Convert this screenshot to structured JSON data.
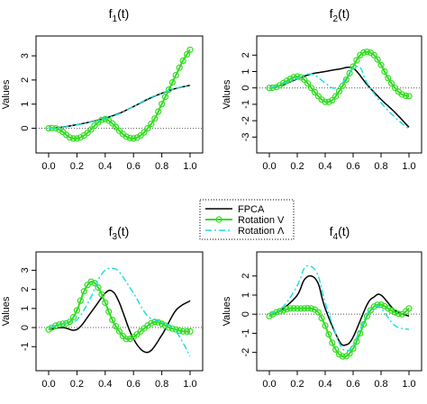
{
  "legend": {
    "entries": [
      {
        "label": "FPCA",
        "color": "#000000",
        "style": "solid"
      },
      {
        "label": "Rotation V",
        "color": "#33dd22",
        "style": "solid-circles"
      },
      {
        "label": "Rotation Λ",
        "color": "#22dddd",
        "style": "dashed"
      }
    ],
    "placement": "center"
  },
  "chart_data": [
    {
      "type": "line",
      "title": "f1(t)",
      "title_main": "f",
      "title_sub": "1",
      "title_rest": "(t)",
      "xlabel": "",
      "ylabel": "Values",
      "xlim": [
        0,
        1
      ],
      "ylim": [
        -0.5,
        3.3
      ],
      "xticks": [
        "0.0",
        "0.2",
        "0.4",
        "0.6",
        "0.8",
        "1.0"
      ],
      "yticks": [
        "0",
        "1",
        "2",
        "3"
      ],
      "grid": false,
      "zero_line": true,
      "series": [
        {
          "name": "FPCA",
          "x": [
            0,
            0.1,
            0.2,
            0.3,
            0.4,
            0.5,
            0.6,
            0.7,
            0.8,
            0.9,
            1.0
          ],
          "values": [
            0.0,
            0.05,
            0.15,
            0.27,
            0.42,
            0.62,
            0.9,
            1.2,
            1.45,
            1.65,
            1.78
          ]
        },
        {
          "name": "Rotation V",
          "x": [
            0,
            0.05,
            0.1,
            0.15,
            0.2,
            0.25,
            0.3,
            0.35,
            0.4,
            0.45,
            0.5,
            0.55,
            0.6,
            0.65,
            0.7,
            0.75,
            0.8,
            0.85,
            0.9,
            0.95,
            1.0
          ],
          "values": [
            0.0,
            0.0,
            -0.15,
            -0.38,
            -0.42,
            -0.3,
            -0.05,
            0.25,
            0.38,
            0.2,
            -0.1,
            -0.35,
            -0.42,
            -0.3,
            0.0,
            0.4,
            1.0,
            1.6,
            2.2,
            2.8,
            3.25
          ]
        },
        {
          "name": "Rotation Λ",
          "x": [
            0,
            0.1,
            0.2,
            0.3,
            0.4,
            0.5,
            0.6,
            0.7,
            0.8,
            0.9,
            1.0
          ],
          "values": [
            0.0,
            0.04,
            0.14,
            0.26,
            0.4,
            0.6,
            0.9,
            1.22,
            1.46,
            1.66,
            1.78
          ]
        }
      ]
    },
    {
      "type": "line",
      "title": "f2(t)",
      "title_main": "f",
      "title_sub": "2",
      "title_rest": "(t)",
      "xlabel": "",
      "ylabel": "Values",
      "xlim": [
        0,
        1
      ],
      "ylim": [
        -3.2,
        2.4
      ],
      "xticks": [
        "0.0",
        "0.2",
        "0.4",
        "0.6",
        "0.8",
        "1.0"
      ],
      "yticks": [
        "-3",
        "-2",
        "-1",
        "0",
        "1",
        "2"
      ],
      "grid": false,
      "zero_line": true,
      "series": [
        {
          "name": "FPCA",
          "x": [
            0,
            0.1,
            0.2,
            0.3,
            0.4,
            0.5,
            0.6,
            0.7,
            0.8,
            0.9,
            1.0
          ],
          "values": [
            0.0,
            0.2,
            0.55,
            0.85,
            1.0,
            1.15,
            1.2,
            0.2,
            -0.7,
            -1.5,
            -2.4
          ]
        },
        {
          "name": "Rotation V",
          "x": [
            0,
            0.05,
            0.1,
            0.15,
            0.2,
            0.25,
            0.3,
            0.35,
            0.4,
            0.45,
            0.5,
            0.55,
            0.6,
            0.65,
            0.7,
            0.75,
            0.8,
            0.85,
            0.9,
            0.95,
            1.0
          ],
          "values": [
            0.0,
            0.05,
            0.3,
            0.55,
            0.7,
            0.5,
            0.0,
            -0.5,
            -0.85,
            -0.75,
            -0.2,
            0.5,
            1.3,
            2.0,
            2.2,
            2.0,
            1.4,
            0.6,
            0.0,
            -0.4,
            -0.5
          ]
        },
        {
          "name": "Rotation Λ",
          "x": [
            0,
            0.1,
            0.2,
            0.3,
            0.4,
            0.45,
            0.5,
            0.55,
            0.6,
            0.65,
            0.7,
            0.8,
            0.9,
            1.0
          ],
          "values": [
            0.0,
            0.25,
            0.6,
            0.85,
            0.3,
            0.0,
            0.1,
            0.6,
            1.2,
            1.25,
            0.3,
            -0.9,
            -1.8,
            -2.5
          ]
        }
      ]
    },
    {
      "type": "line",
      "title": "f3(t)",
      "title_main": "f",
      "title_sub": "3",
      "title_rest": "(t)",
      "xlabel": "",
      "ylabel": "Values",
      "xlim": [
        0,
        1
      ],
      "ylim": [
        -1.6,
        3.3
      ],
      "xticks": [
        "0.0",
        "0.2",
        "0.4",
        "0.6",
        "0.8",
        "1.0"
      ],
      "yticks": [
        "-1",
        "0",
        "1",
        "2",
        "3"
      ],
      "grid": false,
      "zero_line": true,
      "series": [
        {
          "name": "FPCA",
          "x": [
            0,
            0.1,
            0.2,
            0.3,
            0.4,
            0.45,
            0.5,
            0.6,
            0.7,
            0.8,
            0.9,
            1.0
          ],
          "values": [
            -0.1,
            0.0,
            -0.1,
            0.8,
            1.8,
            1.9,
            1.3,
            -0.6,
            -1.3,
            -0.4,
            0.9,
            1.4
          ]
        },
        {
          "name": "Rotation V",
          "x": [
            0,
            0.05,
            0.1,
            0.15,
            0.2,
            0.25,
            0.3,
            0.35,
            0.4,
            0.45,
            0.5,
            0.55,
            0.6,
            0.65,
            0.7,
            0.75,
            0.8,
            0.85,
            0.9,
            0.95,
            1.0
          ],
          "values": [
            -0.1,
            0.1,
            0.2,
            0.3,
            0.9,
            1.9,
            2.4,
            2.1,
            1.3,
            0.4,
            -0.2,
            -0.6,
            -0.5,
            -0.2,
            0.1,
            0.3,
            0.2,
            0.0,
            -0.1,
            -0.2,
            -0.2
          ]
        },
        {
          "name": "Rotation Λ",
          "x": [
            0,
            0.1,
            0.2,
            0.3,
            0.35,
            0.4,
            0.45,
            0.5,
            0.6,
            0.7,
            0.8,
            0.9,
            1.0
          ],
          "values": [
            0.0,
            0.2,
            0.4,
            1.6,
            2.5,
            3.0,
            3.1,
            2.9,
            1.8,
            0.6,
            0.3,
            -0.2,
            -1.5
          ]
        }
      ]
    },
    {
      "type": "line",
      "title": "f4(t)",
      "title_main": "f",
      "title_sub": "4",
      "title_rest": "(t)",
      "xlabel": "",
      "ylabel": "Values",
      "xlim": [
        0,
        1
      ],
      "ylim": [
        -2.3,
        2.6
      ],
      "xticks": [
        "0.0",
        "0.2",
        "0.4",
        "0.6",
        "0.8",
        "1.0"
      ],
      "yticks": [
        "-2",
        "-1",
        "0",
        "1",
        "2"
      ],
      "grid": false,
      "zero_line": true,
      "series": [
        {
          "name": "FPCA",
          "x": [
            0,
            0.1,
            0.2,
            0.25,
            0.3,
            0.35,
            0.4,
            0.5,
            0.55,
            0.6,
            0.7,
            0.75,
            0.8,
            0.9,
            1.0
          ],
          "values": [
            -0.1,
            0.3,
            1.0,
            1.8,
            2.0,
            1.6,
            0.3,
            -1.4,
            -1.6,
            -1.2,
            0.5,
            0.9,
            1.0,
            0.2,
            -0.1
          ]
        },
        {
          "name": "Rotation V",
          "x": [
            0,
            0.05,
            0.1,
            0.15,
            0.2,
            0.25,
            0.3,
            0.35,
            0.4,
            0.45,
            0.5,
            0.55,
            0.6,
            0.65,
            0.7,
            0.75,
            0.8,
            0.85,
            0.9,
            0.95,
            1.0
          ],
          "values": [
            -0.1,
            0.1,
            0.2,
            0.3,
            0.3,
            0.3,
            0.3,
            0.1,
            -0.6,
            -1.5,
            -2.1,
            -2.2,
            -1.8,
            -1.0,
            -0.1,
            0.4,
            0.5,
            0.3,
            0.1,
            0.0,
            0.3
          ]
        },
        {
          "name": "Rotation Λ",
          "x": [
            0,
            0.1,
            0.2,
            0.25,
            0.3,
            0.35,
            0.4,
            0.5,
            0.55,
            0.6,
            0.7,
            0.75,
            0.8,
            0.9,
            1.0
          ],
          "values": [
            0.0,
            0.4,
            1.5,
            2.4,
            2.5,
            2.0,
            0.6,
            -1.5,
            -1.9,
            -1.6,
            0.0,
            0.4,
            0.3,
            -0.6,
            -0.8
          ]
        }
      ]
    }
  ]
}
